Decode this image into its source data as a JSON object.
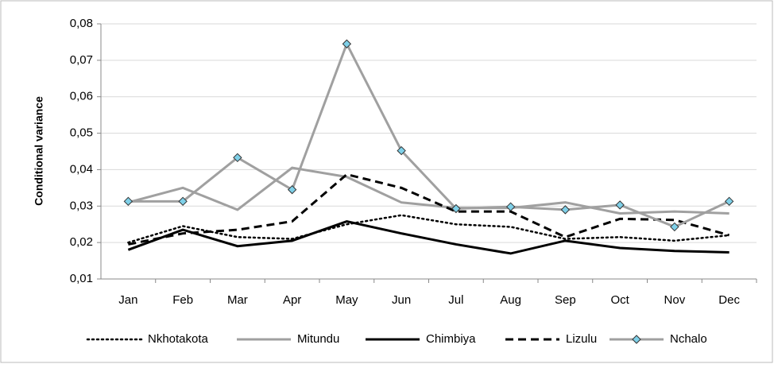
{
  "chart_data": {
    "type": "line",
    "y_label": "Conditional variance",
    "categories": [
      "Jan",
      "Feb",
      "Mar",
      "Apr",
      "May",
      "Jun",
      "Jul",
      "Aug",
      "Sep",
      "Oct",
      "Nov",
      "Dec"
    ],
    "series": [
      {
        "name": "Nkhotakota",
        "color": "#000000",
        "dash": "dotted",
        "values": [
          0.02,
          0.0245,
          0.0215,
          0.021,
          0.025,
          0.0275,
          0.025,
          0.0243,
          0.021,
          0.0215,
          0.0205,
          0.022
        ]
      },
      {
        "name": "Mitundu",
        "color": "#a0a0a0",
        "dash": "solid",
        "values": [
          0.031,
          0.035,
          0.029,
          0.0405,
          0.038,
          0.031,
          0.0295,
          0.0295,
          0.031,
          0.028,
          0.0285,
          0.028
        ]
      },
      {
        "name": "Chimbiya",
        "color": "#000000",
        "dash": "solid",
        "values": [
          0.018,
          0.0235,
          0.019,
          0.0205,
          0.0258,
          0.0225,
          0.0195,
          0.017,
          0.0205,
          0.0185,
          0.0177,
          0.0173
        ]
      },
      {
        "name": "Lizulu",
        "color": "#000000",
        "dash": "dashed",
        "values": [
          0.0195,
          0.0225,
          0.0235,
          0.0258,
          0.0387,
          0.035,
          0.0285,
          0.0285,
          0.0215,
          0.0265,
          0.0262,
          0.022
        ]
      },
      {
        "name": "Nchalo",
        "color": "#a0a0a0",
        "dash": "solid",
        "marker": "diamond",
        "marker_color": "#7fd0e8",
        "values": [
          0.0313,
          0.0313,
          0.0433,
          0.0345,
          0.0745,
          0.0452,
          0.0293,
          0.0298,
          0.029,
          0.0303,
          0.0243,
          0.0313
        ]
      }
    ],
    "ylim": [
      0.01,
      0.08
    ],
    "yticks": [
      {
        "value": 0.01,
        "label": "0,01"
      },
      {
        "value": 0.02,
        "label": "0,02"
      },
      {
        "value": 0.03,
        "label": "0,03"
      },
      {
        "value": 0.04,
        "label": "0,04"
      },
      {
        "value": 0.05,
        "label": "0,05"
      },
      {
        "value": 0.06,
        "label": "0,06"
      },
      {
        "value": 0.07,
        "label": "0,07"
      },
      {
        "value": 0.08,
        "label": "0,08"
      }
    ],
    "grid": true,
    "legend": "bottom"
  }
}
